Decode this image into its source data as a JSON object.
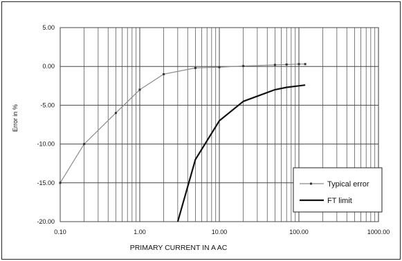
{
  "chart_data": {
    "type": "line",
    "xscale": "log",
    "xlim": [
      0.1,
      1000
    ],
    "ylim": [
      -20,
      5
    ],
    "grid": true,
    "legend_position": "bottom-right",
    "xlabel": "PRIMARY CURRENT IN A AC",
    "ylabel": "Error in %",
    "xticks": [
      "0.10",
      "1.00",
      "10.00",
      "100.00",
      "1000.00"
    ],
    "yticks": [
      "5.00",
      "0.00",
      "-5.00",
      "-10.00",
      "-15.00",
      "-20.00"
    ],
    "series": [
      {
        "name": "Typical error",
        "color": "#8a8a8a",
        "markers": true,
        "x": [
          0.1,
          0.2,
          0.5,
          1,
          2,
          5,
          10,
          20,
          50,
          70,
          100,
          120
        ],
        "y": [
          -15,
          -10,
          -6,
          -3,
          -1,
          -0.2,
          -0.1,
          0.05,
          0.2,
          0.25,
          0.3,
          0.3
        ]
      },
      {
        "name": "FT limit",
        "color": "#111111",
        "markers": false,
        "x": [
          3,
          5,
          10,
          20,
          50,
          70,
          100,
          120
        ],
        "y": [
          -20,
          -12,
          -7,
          -4.5,
          -3,
          -2.7,
          -2.5,
          -2.4
        ]
      }
    ]
  }
}
